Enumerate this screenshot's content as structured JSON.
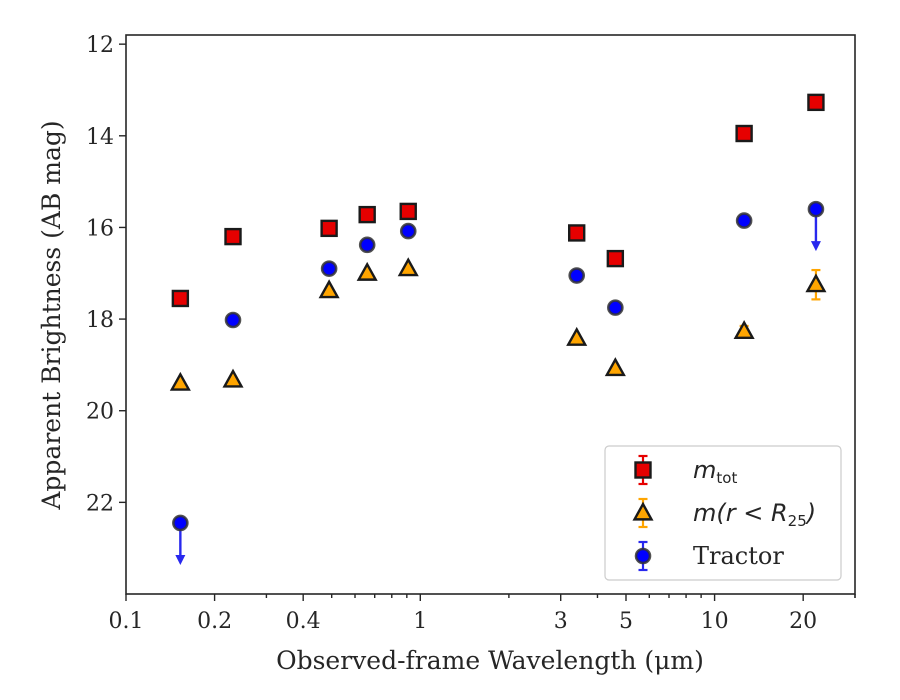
{
  "chart_data": {
    "type": "scatter",
    "xlabel": "Observed-frame Wavelength (μm)",
    "ylabel": "Apparent Brightness (AB mag)",
    "x_scale": "log",
    "xlim": [
      0.1,
      30
    ],
    "ylim": [
      24.0,
      11.8
    ],
    "y_inverted": true,
    "x_ticks": [
      {
        "value": 0.1,
        "label": "0.1"
      },
      {
        "value": 0.2,
        "label": "0.2"
      },
      {
        "value": 0.4,
        "label": "0.4"
      },
      {
        "value": 1,
        "label": "1"
      },
      {
        "value": 3,
        "label": "3"
      },
      {
        "value": 5,
        "label": "5"
      },
      {
        "value": 10,
        "label": "10"
      },
      {
        "value": 20,
        "label": "20"
      }
    ],
    "y_ticks": [
      {
        "value": 12,
        "label": "12"
      },
      {
        "value": 14,
        "label": "14"
      },
      {
        "value": 16,
        "label": "16"
      },
      {
        "value": 18,
        "label": "18"
      },
      {
        "value": 20,
        "label": "20"
      },
      {
        "value": 22,
        "label": "22"
      }
    ],
    "legend_position": "lower-right",
    "series": [
      {
        "name": "m_tot",
        "legend": {
          "math": "m",
          "sub": "tot",
          "rest": ""
        },
        "marker": "square",
        "color": "#e60000",
        "errcolor": "#e60000",
        "points": [
          {
            "x": 0.153,
            "y": 17.55,
            "err": 0
          },
          {
            "x": 0.231,
            "y": 16.2,
            "err": 0
          },
          {
            "x": 0.49,
            "y": 16.02,
            "err": 0
          },
          {
            "x": 0.66,
            "y": 15.72,
            "err": 0
          },
          {
            "x": 0.91,
            "y": 15.65,
            "err": 0
          },
          {
            "x": 3.4,
            "y": 16.12,
            "err": 0
          },
          {
            "x": 4.6,
            "y": 16.68,
            "err": 0
          },
          {
            "x": 12.6,
            "y": 13.95,
            "err": 0
          },
          {
            "x": 22.1,
            "y": 13.27,
            "err": 0
          }
        ]
      },
      {
        "name": "m(r < R25)",
        "legend": {
          "math": "m(r < R",
          "sub": "25",
          "rest": ")"
        },
        "marker": "triangle",
        "color": "#ffa500",
        "errcolor": "#ffa500",
        "points": [
          {
            "x": 0.153,
            "y": 19.4,
            "err": 0
          },
          {
            "x": 0.231,
            "y": 19.33,
            "err": 0
          },
          {
            "x": 0.49,
            "y": 17.38,
            "err": 0
          },
          {
            "x": 0.66,
            "y": 17.0,
            "err": 0
          },
          {
            "x": 0.91,
            "y": 16.9,
            "err": 0
          },
          {
            "x": 3.4,
            "y": 18.42,
            "err": 0
          },
          {
            "x": 4.6,
            "y": 19.08,
            "err": 0
          },
          {
            "x": 12.6,
            "y": 18.27,
            "err": 0.12
          },
          {
            "x": 22.1,
            "y": 17.25,
            "err": 0.32
          }
        ]
      },
      {
        "name": "Tractor",
        "legend": {
          "math": "",
          "sub": "",
          "rest": "Tractor"
        },
        "marker": "circle",
        "color": "#0000ff",
        "errcolor": "#2828ee",
        "points": [
          {
            "x": 0.153,
            "y": 22.45,
            "err": 0,
            "upper_limit": true
          },
          {
            "x": 0.231,
            "y": 18.02,
            "err": 0
          },
          {
            "x": 0.49,
            "y": 16.9,
            "err": 0
          },
          {
            "x": 0.66,
            "y": 16.38,
            "err": 0
          },
          {
            "x": 0.91,
            "y": 16.08,
            "err": 0
          },
          {
            "x": 3.4,
            "y": 17.05,
            "err": 0
          },
          {
            "x": 4.6,
            "y": 17.75,
            "err": 0
          },
          {
            "x": 12.6,
            "y": 15.85,
            "err": 0
          },
          {
            "x": 22.1,
            "y": 15.6,
            "err": 0,
            "upper_limit": true
          }
        ]
      }
    ]
  }
}
